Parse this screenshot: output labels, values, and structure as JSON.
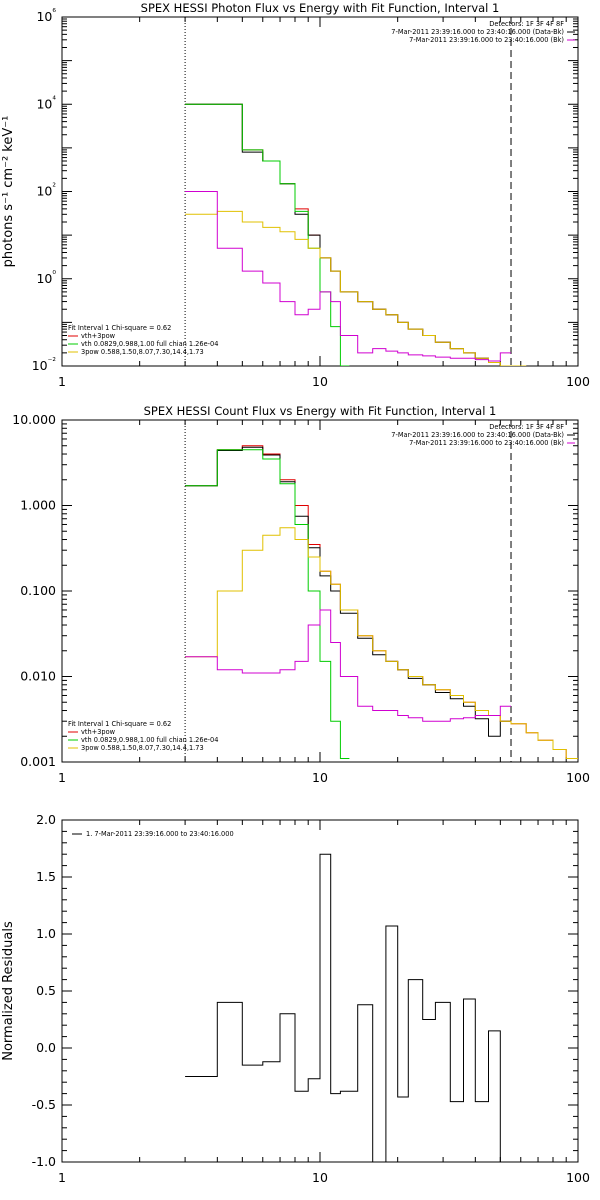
{
  "chart_data": [
    {
      "type": "line",
      "title": "SPEX HESSI Photon Flux vs Energy with Fit Function, Interval 1",
      "xlabel": "",
      "ylabel": "photons s⁻¹ cm⁻² keV⁻¹",
      "xscale": "log",
      "yscale": "log",
      "xlim": [
        1,
        100
      ],
      "ylim": [
        0.01,
        1000000
      ],
      "xticks": [
        1,
        10,
        100
      ],
      "xtick_labels": [
        "1",
        "10",
        "100"
      ],
      "yticks": [
        0.01,
        1,
        100,
        10000,
        1000000
      ],
      "ytick_labels": [
        "10⁻²",
        "10⁰",
        "10²",
        "10⁴",
        "10⁶"
      ],
      "vlines": [
        {
          "x": 3,
          "style": "dotted"
        },
        {
          "x": 55,
          "style": "dashed"
        }
      ],
      "info": [
        "Detectors: 1F 3F 4F 8F",
        "7-Mar-2011 23:39:16.000 to 23:40:16.000 (Data-Bk)",
        "7-Mar-2011 23:39:16.000 to 23:40:16.000 (Bk)"
      ],
      "info_colors": [
        "#000000",
        "#d000d0"
      ],
      "fit_legend_title": "Fit Interval 1   Chi-square = 0.62",
      "fit_legend": [
        "vth+3pow",
        "vth 0.0829,0.988,1.00  full chian 1.26e-04",
        "3pow 0.588,1.50,8.07,7.30,14.4,1.73"
      ],
      "series": [
        {
          "name": "vth+3pow",
          "color": "#e00000",
          "edges": [
            3,
            4,
            5,
            6,
            7,
            8,
            9,
            10,
            11,
            12,
            14,
            16,
            18,
            20,
            22,
            25,
            28,
            32,
            36,
            40,
            45,
            50,
            55,
            63
          ],
          "values": [
            10000,
            10000,
            900,
            500,
            150,
            40,
            10,
            3,
            1.5,
            0.5,
            0.3,
            0.2,
            0.15,
            0.1,
            0.07,
            0.05,
            0.035,
            0.025,
            0.02,
            0.015,
            0.012,
            0.01,
            0.008
          ]
        },
        {
          "name": "Data-Bk",
          "color": "#000000",
          "edges": [
            3,
            4,
            5,
            6,
            7,
            8,
            9,
            10,
            11,
            12,
            14,
            16,
            18,
            20,
            22,
            25,
            28,
            32,
            36,
            40,
            45,
            50,
            55
          ],
          "values": [
            10000,
            10000,
            800,
            500,
            150,
            30,
            10,
            3,
            1.5,
            0.5,
            0.3,
            0.2,
            0.15,
            0.1,
            0.07,
            0.05,
            0.035,
            0.025,
            0.02,
            0.015,
            0.012,
            0.01
          ]
        },
        {
          "name": "vth",
          "color": "#00cc00",
          "edges": [
            3,
            4,
            5,
            6,
            7,
            8,
            9,
            10,
            11,
            12,
            13
          ],
          "values": [
            10000,
            10000,
            900,
            500,
            150,
            35,
            5,
            0.5,
            0.08,
            0.01
          ]
        },
        {
          "name": "3pow",
          "color": "#e0c000",
          "edges": [
            3,
            4,
            5,
            6,
            7,
            8,
            9,
            10,
            11,
            12,
            14,
            16,
            18,
            20,
            22,
            25,
            28,
            32,
            36,
            40,
            45,
            50,
            55,
            63
          ],
          "values": [
            30,
            35,
            20,
            15,
            12,
            8,
            5,
            3,
            1.5,
            0.5,
            0.3,
            0.2,
            0.15,
            0.1,
            0.07,
            0.05,
            0.035,
            0.025,
            0.02,
            0.015,
            0.012,
            0.01,
            0.008
          ]
        },
        {
          "name": "Bk",
          "color": "#d000d0",
          "edges": [
            3,
            4,
            5,
            6,
            7,
            8,
            9,
            10,
            11,
            12,
            14,
            16,
            18,
            20,
            22,
            25,
            28,
            32,
            36,
            40,
            45,
            50,
            55
          ],
          "values": [
            100,
            5,
            1.5,
            0.8,
            0.3,
            0.15,
            0.2,
            0.5,
            0.3,
            0.05,
            0.02,
            0.025,
            0.022,
            0.02,
            0.018,
            0.017,
            0.016,
            0.015,
            0.015,
            0.014,
            0.013,
            0.02
          ]
        }
      ]
    },
    {
      "type": "line",
      "title": "SPEX HESSI Count Flux vs Energy with Fit Function, Interval 1",
      "xlabel": "",
      "ylabel": "",
      "xscale": "log",
      "yscale": "log",
      "xlim": [
        1,
        100
      ],
      "ylim": [
        0.001,
        10
      ],
      "xticks": [
        1,
        10,
        100
      ],
      "xtick_labels": [
        "1",
        "10",
        "100"
      ],
      "yticks": [
        0.001,
        0.01,
        0.1,
        1,
        10
      ],
      "ytick_labels": [
        "0.001",
        "0.010",
        "0.100",
        "1.000",
        "10.000"
      ],
      "vlines": [
        {
          "x": 3,
          "style": "dotted"
        },
        {
          "x": 55,
          "style": "dashed"
        }
      ],
      "info": [
        "Detectors: 1F 3F 4F 8F",
        "7-Mar-2011 23:39:16.000 to 23:40:16.000 (Data-Bk)",
        "7-Mar-2011 23:39:16.000 to 23:40:16.000 (Bk)"
      ],
      "info_colors": [
        "#000000",
        "#d000d0"
      ],
      "fit_legend_title": "Fit Interval 1   Chi-square = 0.62",
      "fit_legend": [
        "vth+3pow",
        "vth 0.0829,0.988,1.00  full chian 1.26e-04",
        "3pow 0.588,1.50,8.07,7.30,14.4,1.73"
      ],
      "series": [
        {
          "name": "vth+3pow",
          "color": "#e00000",
          "edges": [
            3,
            4,
            5,
            6,
            7,
            8,
            9,
            10,
            11,
            12,
            14,
            16,
            18,
            20,
            22,
            25,
            28,
            32,
            36,
            40,
            45,
            50,
            55,
            63,
            70,
            80,
            90,
            100
          ],
          "values": [
            1.7,
            4.5,
            5.0,
            4.0,
            2.0,
            1.0,
            0.35,
            0.17,
            0.12,
            0.06,
            0.03,
            0.02,
            0.015,
            0.012,
            0.01,
            0.008,
            0.007,
            0.006,
            0.005,
            0.004,
            0.0035,
            0.003,
            0.0028,
            0.0022,
            0.0018,
            0.0014,
            0.0011
          ]
        },
        {
          "name": "Data-Bk",
          "color": "#000000",
          "edges": [
            3,
            4,
            5,
            6,
            7,
            8,
            9,
            10,
            11,
            12,
            14,
            16,
            18,
            20,
            22,
            25,
            28,
            32,
            36,
            40,
            45,
            50,
            55
          ],
          "values": [
            1.7,
            4.4,
            4.8,
            3.9,
            1.9,
            0.75,
            0.32,
            0.15,
            0.1,
            0.055,
            0.028,
            0.018,
            0.015,
            0.012,
            0.0095,
            0.008,
            0.0065,
            0.0055,
            0.0045,
            0.0032,
            0.002,
            0.003
          ]
        },
        {
          "name": "vth",
          "color": "#00cc00",
          "edges": [
            3,
            4,
            5,
            6,
            7,
            8,
            9,
            10,
            11,
            12,
            13
          ],
          "values": [
            1.7,
            4.5,
            4.5,
            3.5,
            1.8,
            0.6,
            0.1,
            0.015,
            0.003,
            0.0011
          ]
        },
        {
          "name": "3pow",
          "color": "#e0c000",
          "edges": [
            3,
            4,
            5,
            6,
            7,
            8,
            9,
            10,
            11,
            12,
            14,
            16,
            18,
            20,
            22,
            25,
            28,
            32,
            36,
            40,
            45,
            50,
            55,
            63,
            70,
            80,
            90,
            100
          ],
          "values": [
            0.017,
            0.1,
            0.3,
            0.45,
            0.55,
            0.4,
            0.25,
            0.17,
            0.12,
            0.06,
            0.03,
            0.02,
            0.015,
            0.012,
            0.01,
            0.008,
            0.007,
            0.006,
            0.005,
            0.004,
            0.0035,
            0.003,
            0.0028,
            0.0022,
            0.0018,
            0.0014,
            0.0011
          ]
        },
        {
          "name": "Bk",
          "color": "#d000d0",
          "edges": [
            3,
            4,
            5,
            6,
            7,
            8,
            9,
            10,
            11,
            12,
            14,
            16,
            18,
            20,
            22,
            25,
            28,
            32,
            36,
            40,
            45,
            50,
            55
          ],
          "values": [
            0.017,
            0.012,
            0.011,
            0.011,
            0.012,
            0.015,
            0.04,
            0.06,
            0.025,
            0.01,
            0.0045,
            0.004,
            0.004,
            0.0035,
            0.0033,
            0.003,
            0.003,
            0.0032,
            0.0033,
            0.0035,
            0.0035,
            0.0045
          ]
        }
      ]
    },
    {
      "type": "line",
      "title": "",
      "xlabel": "",
      "ylabel": "Normalized Residuals",
      "xscale": "log",
      "yscale": "linear",
      "xlim": [
        1,
        100
      ],
      "ylim": [
        -1.0,
        2.0
      ],
      "xticks": [
        1,
        10,
        100
      ],
      "xtick_labels": [
        "1",
        "10",
        "100"
      ],
      "yticks": [
        -1.0,
        -0.5,
        0.0,
        0.5,
        1.0,
        1.5,
        2.0
      ],
      "ytick_labels": [
        "-1.0",
        "-0.5",
        "0.0",
        "0.5",
        "1.0",
        "1.5",
        "2.0"
      ],
      "legend": [
        "1.  7-Mar-2011 23:39:16.000 to 23:40:16.000"
      ],
      "series": [
        {
          "name": "1.  7-Mar-2011 23:39:16.000 to 23:40:16.000",
          "color": "#000000",
          "edges": [
            3,
            4,
            5,
            6,
            7,
            8,
            9,
            10,
            11,
            12,
            14,
            16,
            18,
            20,
            22,
            25,
            28,
            32,
            36,
            40,
            45,
            50,
            55
          ],
          "values": [
            -0.25,
            0.4,
            -0.15,
            -0.12,
            0.3,
            -0.38,
            -0.27,
            1.7,
            -0.4,
            -0.38,
            0.38,
            -1.05,
            1.07,
            -0.43,
            0.6,
            0.25,
            0.4,
            -0.47,
            0.43,
            -0.47,
            0.15,
            -1.2
          ]
        }
      ]
    }
  ]
}
